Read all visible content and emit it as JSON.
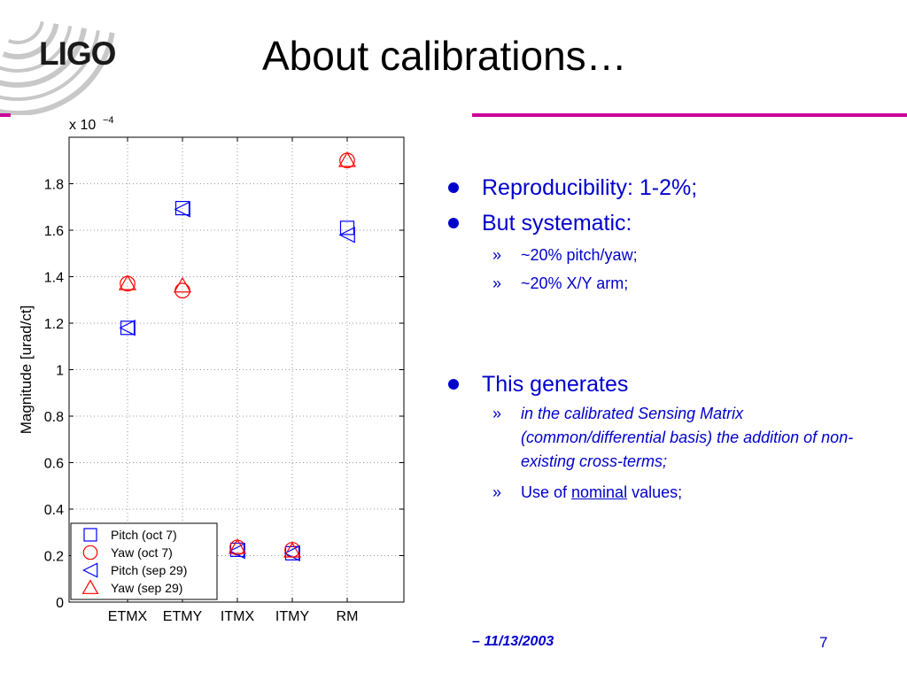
{
  "logo": {
    "text": "LIGO"
  },
  "title": "About calibrations…",
  "colors": {
    "accent": "#cc0099",
    "text_blue": "#0000cc",
    "pitch": "#0000ff",
    "yaw": "#ff0000"
  },
  "bullets": [
    {
      "text": "Reproducibility: 1-2%;",
      "sub": []
    },
    {
      "text": "But systematic:",
      "sub": [
        "~20% pitch/yaw;",
        "~20% X/Y arm;"
      ]
    },
    {
      "text": "This generates",
      "sub": [
        "in the calibrated Sensing Matrix (common/differential basis) the addition of non-existing cross-terms;",
        {
          "prefix": "Use of ",
          "underlined": "nominal",
          "suffix": " values;"
        }
      ]
    }
  ],
  "sub_marker": "»",
  "footer": {
    "date": "– 11/13/2003",
    "page": "7"
  },
  "chart_data": {
    "type": "scatter",
    "title": "",
    "xlabel": "",
    "ylabel": "Magnitude [urad/ct]",
    "scale_label": "x 10",
    "scale_exponent": "−4",
    "categories": [
      "ETMX",
      "ETMY",
      "ITMX",
      "ITMY",
      "RM"
    ],
    "ylim": [
      0,
      2.0
    ],
    "yticks": [
      "0",
      "0.2",
      "0.4",
      "0.6",
      "0.8",
      "1",
      "1.2",
      "1.4",
      "1.6",
      "1.8"
    ],
    "grid": true,
    "legend_position": "bottom-left",
    "series": [
      {
        "name": "Pitch (oct 7)",
        "marker": "square",
        "color": "#0000ff",
        "values": [
          1.18,
          1.695,
          0.225,
          0.21,
          1.61
        ]
      },
      {
        "name": "Yaw (oct 7)",
        "marker": "circle",
        "color": "#ff0000",
        "values": [
          1.37,
          1.34,
          0.235,
          0.225,
          1.9
        ]
      },
      {
        "name": "Pitch (sep 29)",
        "marker": "triangle-left",
        "color": "#0000ff",
        "values": [
          1.18,
          1.69,
          0.22,
          0.21,
          1.58
        ]
      },
      {
        "name": "Yaw (sep 29)",
        "marker": "triangle-up",
        "color": "#ff0000",
        "values": [
          1.37,
          1.36,
          0.235,
          0.22,
          1.9
        ]
      }
    ]
  }
}
